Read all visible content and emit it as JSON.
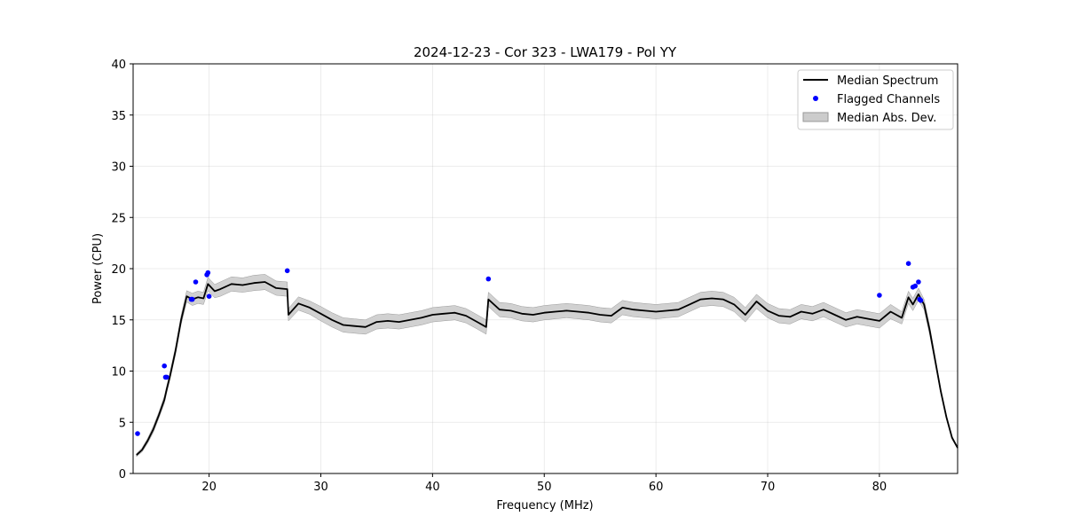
{
  "chart_data": {
    "type": "line",
    "title": "2024-12-23 - Cor 323 - LWA179 - Pol YY",
    "xlabel": "Frequency (MHz)",
    "ylabel": "Power (CPU)",
    "xlim": [
      13.2,
      87.0
    ],
    "ylim": [
      0,
      40
    ],
    "xticks": [
      20,
      30,
      40,
      50,
      60,
      70,
      80
    ],
    "yticks": [
      0,
      5,
      10,
      15,
      20,
      25,
      30,
      35,
      40
    ],
    "grid": true,
    "legend_position": "top-right",
    "legend": [
      {
        "label": "Median Spectrum",
        "kind": "line",
        "color": "#000000"
      },
      {
        "label": "Flagged Channels",
        "kind": "marker",
        "color": "#0000ff"
      },
      {
        "label": "Median Abs. Dev.",
        "kind": "band",
        "color": "#cccccc"
      }
    ],
    "series": [
      {
        "name": "Median Spectrum",
        "color": "#000000",
        "x": [
          13.5,
          14.0,
          14.5,
          15.0,
          15.5,
          16.0,
          16.2,
          16.5,
          17.0,
          17.5,
          18.0,
          18.5,
          19.0,
          19.5,
          19.9,
          20.5,
          21.0,
          22.0,
          23.0,
          24.0,
          25.0,
          26.0,
          27.0,
          27.1,
          28.0,
          29.0,
          30.0,
          31.0,
          32.0,
          33.0,
          34.0,
          35.0,
          36.0,
          37.0,
          38.0,
          39.0,
          40.0,
          41.0,
          42.0,
          43.0,
          44.0,
          44.8,
          45.0,
          46.0,
          47.0,
          48.0,
          49.0,
          50.0,
          51.0,
          52.0,
          53.0,
          54.0,
          55.0,
          56.0,
          57.0,
          58.0,
          59.0,
          60.0,
          61.0,
          62.0,
          63.0,
          64.0,
          65.0,
          66.0,
          67.0,
          68.0,
          69.0,
          70.0,
          71.0,
          72.0,
          73.0,
          74.0,
          75.0,
          76.0,
          77.0,
          78.0,
          79.0,
          80.0,
          81.0,
          82.0,
          82.6,
          83.0,
          83.5,
          84.0,
          84.5,
          85.0,
          85.5,
          86.0,
          86.5,
          87.0
        ],
        "y": [
          1.8,
          2.3,
          3.2,
          4.3,
          5.7,
          7.2,
          8.2,
          9.5,
          12.0,
          15.0,
          17.3,
          17.0,
          17.2,
          17.1,
          18.5,
          17.8,
          18.0,
          18.5,
          18.4,
          18.6,
          18.7,
          18.1,
          18.0,
          15.5,
          16.6,
          16.2,
          15.6,
          15.0,
          14.5,
          14.4,
          14.3,
          14.8,
          14.9,
          14.8,
          15.0,
          15.2,
          15.5,
          15.6,
          15.7,
          15.4,
          14.8,
          14.3,
          17.0,
          16.0,
          15.9,
          15.6,
          15.5,
          15.7,
          15.8,
          15.9,
          15.8,
          15.7,
          15.5,
          15.4,
          16.2,
          16.0,
          15.9,
          15.8,
          15.9,
          16.0,
          16.5,
          17.0,
          17.1,
          17.0,
          16.5,
          15.5,
          16.8,
          15.9,
          15.4,
          15.3,
          15.8,
          15.6,
          16.0,
          15.5,
          15.0,
          15.3,
          15.1,
          14.9,
          15.8,
          15.2,
          17.2,
          16.5,
          17.5,
          16.5,
          14.0,
          11.0,
          8.0,
          5.5,
          3.5,
          2.5
        ]
      }
    ],
    "mad_band": {
      "name": "Median Abs. Dev.",
      "halfwidth": [
        0.15,
        0.2,
        0.25,
        0.3,
        0.3,
        0.35,
        0.35,
        0.35,
        0.4,
        0.45,
        0.55,
        0.6,
        0.6,
        0.6,
        0.65,
        0.65,
        0.7,
        0.7,
        0.7,
        0.75,
        0.75,
        0.7,
        0.7,
        0.6,
        0.65,
        0.65,
        0.7,
        0.7,
        0.7,
        0.7,
        0.7,
        0.7,
        0.7,
        0.7,
        0.7,
        0.7,
        0.7,
        0.7,
        0.7,
        0.7,
        0.7,
        0.7,
        0.7,
        0.7,
        0.7,
        0.7,
        0.7,
        0.7,
        0.7,
        0.7,
        0.7,
        0.7,
        0.7,
        0.7,
        0.7,
        0.7,
        0.7,
        0.7,
        0.7,
        0.7,
        0.7,
        0.7,
        0.7,
        0.7,
        0.7,
        0.7,
        0.7,
        0.7,
        0.7,
        0.7,
        0.7,
        0.7,
        0.7,
        0.7,
        0.7,
        0.7,
        0.7,
        0.7,
        0.7,
        0.6,
        0.6,
        0.6,
        0.6,
        0.5,
        0.45,
        0.35,
        0.25,
        0.2,
        0.15,
        0.1
      ]
    },
    "flagged_channels": {
      "name": "Flagged Channels",
      "color": "#0000ff",
      "x": [
        13.6,
        16.0,
        16.1,
        16.2,
        18.4,
        18.5,
        18.8,
        19.8,
        19.9,
        20.0,
        27.0,
        45.0,
        80.0,
        82.6,
        83.0,
        83.2,
        83.5,
        83.6,
        83.7
      ],
      "y": [
        3.9,
        10.5,
        9.4,
        9.4,
        17.0,
        17.0,
        18.7,
        19.4,
        19.6,
        17.3,
        19.8,
        19.0,
        17.4,
        20.5,
        18.2,
        18.3,
        18.7,
        17.0,
        16.9
      ]
    }
  }
}
